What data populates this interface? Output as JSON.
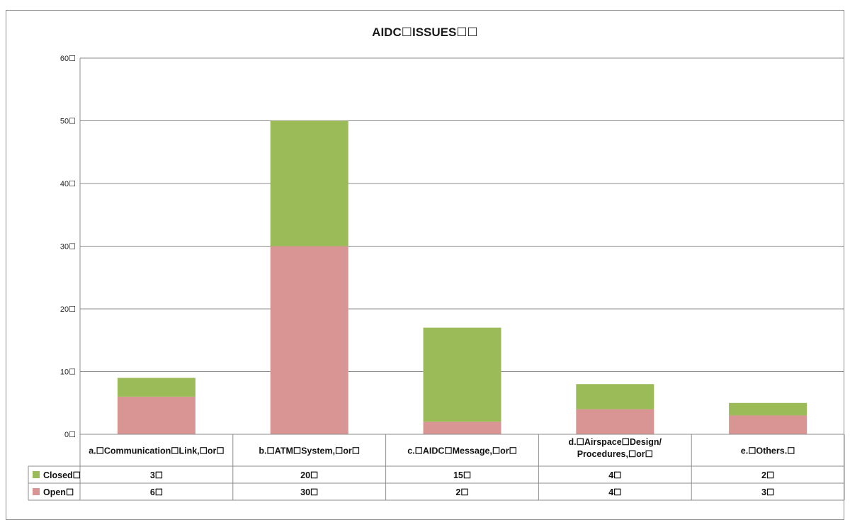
{
  "chart_data": {
    "type": "bar",
    "stacked": true,
    "title": "AIDC☐ISSUES☐☐",
    "categories": [
      "a.☐Communication☐Link,☐or☐",
      "b.☐ATM☐System,☐or☐",
      "c.☐AIDC☐Message,☐or☐",
      "d.☐Airspace☐Design/\nProcedures,☐or☐",
      "e.☐Others.☐"
    ],
    "series": [
      {
        "name": "Open☐",
        "color": "#d99594",
        "values": [
          6,
          30,
          2,
          4,
          3
        ],
        "value_labels": [
          "6☐",
          "30☐",
          "2☐",
          "4☐",
          "3☐"
        ]
      },
      {
        "name": "Closed☐",
        "color": "#9bbb59",
        "values": [
          3,
          20,
          15,
          4,
          2
        ],
        "value_labels": [
          "3☐",
          "20☐",
          "15☐",
          "4☐",
          "2☐"
        ]
      }
    ],
    "ylim": [
      0,
      60
    ],
    "yticks": [
      {
        "value": 0,
        "label": "0☐"
      },
      {
        "value": 10,
        "label": "10☐"
      },
      {
        "value": 20,
        "label": "20☐"
      },
      {
        "value": 30,
        "label": "30☐"
      },
      {
        "value": 40,
        "label": "40☐"
      },
      {
        "value": 50,
        "label": "50☐"
      },
      {
        "value": 60,
        "label": "60☐"
      }
    ],
    "grid": true,
    "data_table": true,
    "data_table_row_order": [
      "Closed☐",
      "Open☐"
    ],
    "xlabel": "",
    "ylabel": ""
  }
}
